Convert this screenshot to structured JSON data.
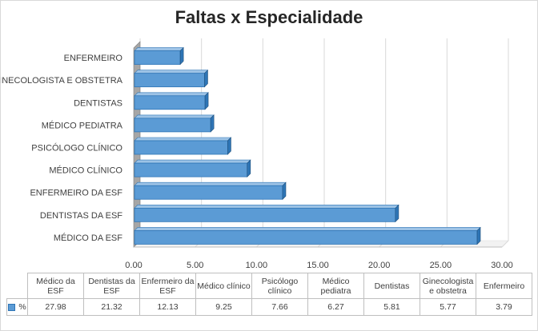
{
  "chart_data": {
    "type": "bar",
    "orientation": "horizontal",
    "title": "Faltas x Especialidade",
    "categories": [
      "MÉDICO DA ESF",
      "DENTISTAS DA ESF",
      "ENFERMEIRO DA ESF",
      "MÉDICO CLÍNICO",
      "PSICÓLOGO CLÍNICO",
      "MÉDICO PEDIATRA",
      "DENTISTAS",
      "GINECOLOGISTA E OBSTETRA",
      "ENFERMEIRO"
    ],
    "series": [
      {
        "name": "%",
        "values": [
          27.98,
          21.32,
          12.13,
          9.25,
          7.66,
          6.27,
          5.81,
          5.77,
          3.79
        ],
        "color": "#5b9bd5"
      }
    ],
    "xlim": [
      0,
      30
    ],
    "x_ticks": [
      "0.00",
      "5.00",
      "10.00",
      "15.00",
      "20.00",
      "25.00",
      "30.00"
    ],
    "grid": true,
    "style": "3d",
    "table": {
      "headers": [
        "Médico da ESF",
        "Dentistas da ESF",
        "Enfermeiro da ESF",
        "Médico clínico",
        "Psicólogo clínico",
        "Médico pediatra",
        "Dentistas",
        "Ginecologista e obstetra",
        "Enfermeiro"
      ],
      "row_label": "%",
      "values": [
        "27.98",
        "21.32",
        "12.13",
        "9.25",
        "7.66",
        "6.27",
        "5.81",
        "5.77",
        "3.79"
      ]
    }
  }
}
